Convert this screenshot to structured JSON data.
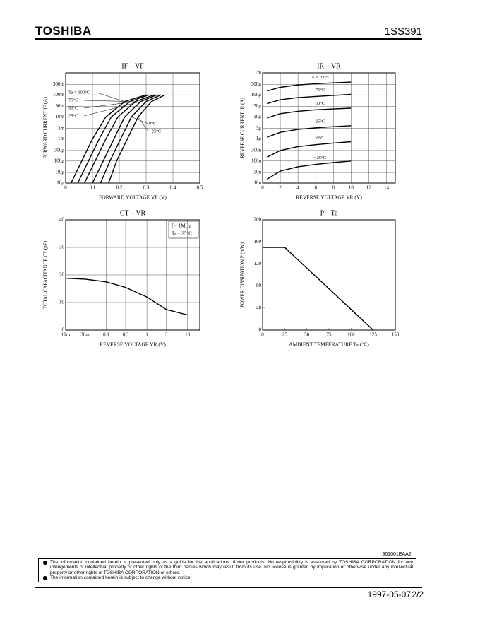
{
  "header": {
    "brand": "TOSHIBA",
    "part": "1SS391"
  },
  "chart_data": [
    {
      "type": "line",
      "title": "IF – VF",
      "xlabel": "FORWARD VOLTAGE  VF  (V)",
      "ylabel": "FORWARD CURRENT  IF  (A)",
      "ylog": true,
      "grid": true,
      "xlim": [
        0,
        0.5
      ],
      "xticks": [
        0,
        0.1,
        0.2,
        0.3,
        0.4,
        0.5
      ],
      "ylim": [
        1e-05,
        1
      ],
      "yticks": [
        {
          "value": 1e-05,
          "label": "10μ"
        },
        {
          "value": 3e-05,
          "label": "30μ"
        },
        {
          "value": 0.0001,
          "label": "100μ"
        },
        {
          "value": 0.0003,
          "label": "300μ"
        },
        {
          "value": 0.001,
          "label": "1m"
        },
        {
          "value": 0.003,
          "label": "3m"
        },
        {
          "value": 0.01,
          "label": "10m"
        },
        {
          "value": 0.03,
          "label": "30m"
        },
        {
          "value": 0.1,
          "label": "100m"
        },
        {
          "value": 0.3,
          "label": "300m"
        }
      ],
      "series": [
        {
          "name": "Ta = 100°C",
          "color": "#000",
          "x": [
            0.02,
            0.06,
            0.1,
            0.15,
            0.22,
            0.3
          ],
          "values": [
            1e-05,
            0.0001,
            0.001,
            0.01,
            0.05,
            0.1
          ]
        },
        {
          "name": "75°C",
          "color": "#000",
          "x": [
            0.045,
            0.085,
            0.125,
            0.17,
            0.24,
            0.31
          ],
          "values": [
            1e-05,
            0.0001,
            0.001,
            0.01,
            0.05,
            0.1
          ]
        },
        {
          "name": "50°C",
          "color": "#000",
          "x": [
            0.07,
            0.11,
            0.15,
            0.195,
            0.26,
            0.33
          ],
          "values": [
            1e-05,
            0.0001,
            0.001,
            0.01,
            0.05,
            0.1
          ]
        },
        {
          "name": "25°C",
          "color": "#000",
          "x": [
            0.1,
            0.14,
            0.18,
            0.22,
            0.28,
            0.34
          ],
          "values": [
            1e-05,
            0.0001,
            0.001,
            0.01,
            0.05,
            0.1
          ]
        },
        {
          "name": "0°C",
          "color": "#000",
          "x": [
            0.13,
            0.165,
            0.205,
            0.245,
            0.3,
            0.355
          ],
          "values": [
            1e-05,
            0.0001,
            0.001,
            0.01,
            0.05,
            0.1
          ]
        },
        {
          "name": "−25°C",
          "color": "#000",
          "x": [
            0.16,
            0.19,
            0.23,
            0.27,
            0.32,
            0.37
          ],
          "values": [
            1e-05,
            0.0001,
            0.001,
            0.01,
            0.05,
            0.1
          ]
        }
      ]
    },
    {
      "type": "line",
      "title": "IR – VR",
      "xlabel": "REVERSE VOLTAGE  VR  (V)",
      "ylabel": "REVERSE CURRENT  IR  (A)",
      "ylog": true,
      "grid": true,
      "xlim": [
        0,
        15
      ],
      "xticks": [
        0,
        2,
        4,
        6,
        8,
        10,
        12,
        14
      ],
      "ylim": [
        1e-08,
        0.001
      ],
      "yticks": [
        {
          "value": 1e-08,
          "label": "10n"
        },
        {
          "value": 3e-08,
          "label": "30n"
        },
        {
          "value": 1e-07,
          "label": "100n"
        },
        {
          "value": 3e-07,
          "label": "300n"
        },
        {
          "value": 1e-06,
          "label": "1μ"
        },
        {
          "value": 3e-06,
          "label": "3μ"
        },
        {
          "value": 1e-05,
          "label": "10μ"
        },
        {
          "value": 3e-05,
          "label": "30μ"
        },
        {
          "value": 0.0001,
          "label": "100μ"
        },
        {
          "value": 0.0003,
          "label": "300μ"
        },
        {
          "value": 0.001,
          "label": "1m"
        }
      ],
      "series": [
        {
          "name": "Ta = 100°C",
          "color": "#000",
          "x": [
            0.5,
            2,
            4,
            6,
            8,
            10
          ],
          "values": [
            0.00015,
            0.00022,
            0.00028,
            0.00032,
            0.00035,
            0.00038
          ]
        },
        {
          "name": "75°C",
          "color": "#000",
          "x": [
            0.5,
            2,
            4,
            6,
            8,
            10
          ],
          "values": [
            4e-05,
            6e-05,
            7.5e-05,
            8.5e-05,
            9.5e-05,
            0.000105
          ]
        },
        {
          "name": "50°C",
          "color": "#000",
          "x": [
            0.5,
            2,
            4,
            6,
            8,
            10
          ],
          "values": [
            9e-06,
            1.4e-05,
            1.8e-05,
            2.1e-05,
            2.3e-05,
            2.5e-05
          ]
        },
        {
          "name": "25°C",
          "color": "#000",
          "x": [
            0.5,
            2,
            4,
            6,
            8,
            10
          ],
          "values": [
            1.2e-06,
            2e-06,
            2.7e-06,
            3.2e-06,
            3.6e-06,
            4e-06
          ]
        },
        {
          "name": "0°C",
          "color": "#000",
          "x": [
            0.5,
            2,
            4,
            6,
            8,
            10
          ],
          "values": [
            1.5e-07,
            3e-07,
            4.5e-07,
            5.5e-07,
            6.5e-07,
            7.5e-07
          ]
        },
        {
          "name": "−25°C",
          "color": "#000",
          "x": [
            0.5,
            2,
            4,
            6,
            8,
            10
          ],
          "values": [
            1.5e-08,
            3.5e-08,
            5.5e-08,
            7e-08,
            8.5e-08,
            1e-07
          ]
        }
      ]
    },
    {
      "type": "line",
      "title": "CT – VR",
      "xlabel": "REVERSE VOLTAGE  VR  (V)",
      "ylabel": "TOTAL CAPACITANCE  CT  (pF)",
      "xlog": true,
      "grid": true,
      "xlim": [
        0.01,
        20
      ],
      "xticks": [
        {
          "value": 0.01,
          "label": "10m"
        },
        {
          "value": 0.03,
          "label": "30m"
        },
        0.1,
        0.3,
        1,
        3,
        10
      ],
      "ylim": [
        0,
        40
      ],
      "yticks": [
        0,
        10,
        20,
        30,
        40
      ],
      "annotations": [
        "f = 1MHz",
        "Ta = 25°C"
      ],
      "series": [
        {
          "color": "#000",
          "x": [
            0.01,
            0.03,
            0.1,
            0.3,
            1,
            3,
            10
          ],
          "values": [
            18.8,
            18.5,
            17.5,
            15.5,
            12,
            7.5,
            5.5
          ]
        }
      ]
    },
    {
      "type": "line",
      "title": "P – Ta",
      "xlabel": "AMBIENT TEMPERATURE  Ta  (°C)",
      "ylabel": "POWER DISSIPATION  P  (mW)",
      "grid": false,
      "xlim": [
        0,
        150
      ],
      "xticks": [
        0,
        25,
        50,
        75,
        100,
        125,
        150
      ],
      "ylim": [
        0,
        200
      ],
      "yticks": [
        0,
        40,
        80,
        120,
        160,
        200
      ],
      "series": [
        {
          "color": "#000",
          "x": [
            0,
            25,
            125
          ],
          "values": [
            150,
            150,
            0
          ]
        }
      ]
    }
  ],
  "footer": {
    "code": "961001EAA2'",
    "notes": [
      "The information contained herein is presented only as a guide for the applications of our products. No responsibility is assumed by TOSHIBA CORPORATION for any infringements of intellectual property or other rights of the third parties which may result from its use. No license is granted by implication or otherwise under any intellectual property or other rights of TOSHIBA CORPORATION or others.",
      "The information contained herein is subject to change without notice."
    ],
    "date": "1997-05-07",
    "page": "2/2"
  }
}
